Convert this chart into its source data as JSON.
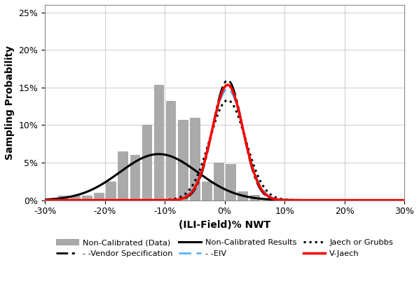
{
  "title": "",
  "xlabel": "(ILI-Field)% NWT",
  "ylabel": "Sampling Probability",
  "xlim": [
    -30,
    30
  ],
  "ylim": [
    0,
    0.26
  ],
  "xticks": [
    -30,
    -20,
    -10,
    0,
    10,
    20,
    30
  ],
  "yticks": [
    0.0,
    0.05,
    0.1,
    0.15,
    0.2,
    0.25
  ],
  "bar_centers": [
    -27,
    -25,
    -23,
    -21,
    -19,
    -17,
    -15,
    -13,
    -11,
    -9,
    -7,
    -5,
    -3,
    -1,
    1,
    3,
    5
  ],
  "bar_heights": [
    0.006,
    0.006,
    0.006,
    0.01,
    0.025,
    0.065,
    0.06,
    0.1,
    0.154,
    0.132,
    0.107,
    0.11,
    0.025,
    0.05,
    0.048,
    0.012,
    0.007
  ],
  "bar_width": 1.6,
  "bar_color": "#aaaaaa",
  "non_cal_mu": -11.0,
  "non_cal_sigma": 6.5,
  "vendor_mu": 0.5,
  "vendor_sigma": 2.5,
  "eiv_mu": 0.5,
  "eiv_sigma": 2.7,
  "jaech_mu": 0.5,
  "jaech_sigma": 3.0,
  "vjaech_mu": 0.5,
  "vjaech_sigma": 2.6,
  "non_cal_line_color": "#000000",
  "vendor_line_color": "#000000",
  "eiv_line_color": "#44aaff",
  "jaech_line_color": "#000000",
  "vjaech_line_color": "#ff0000",
  "background_color": "#ffffff",
  "grid_color": "#cccccc"
}
